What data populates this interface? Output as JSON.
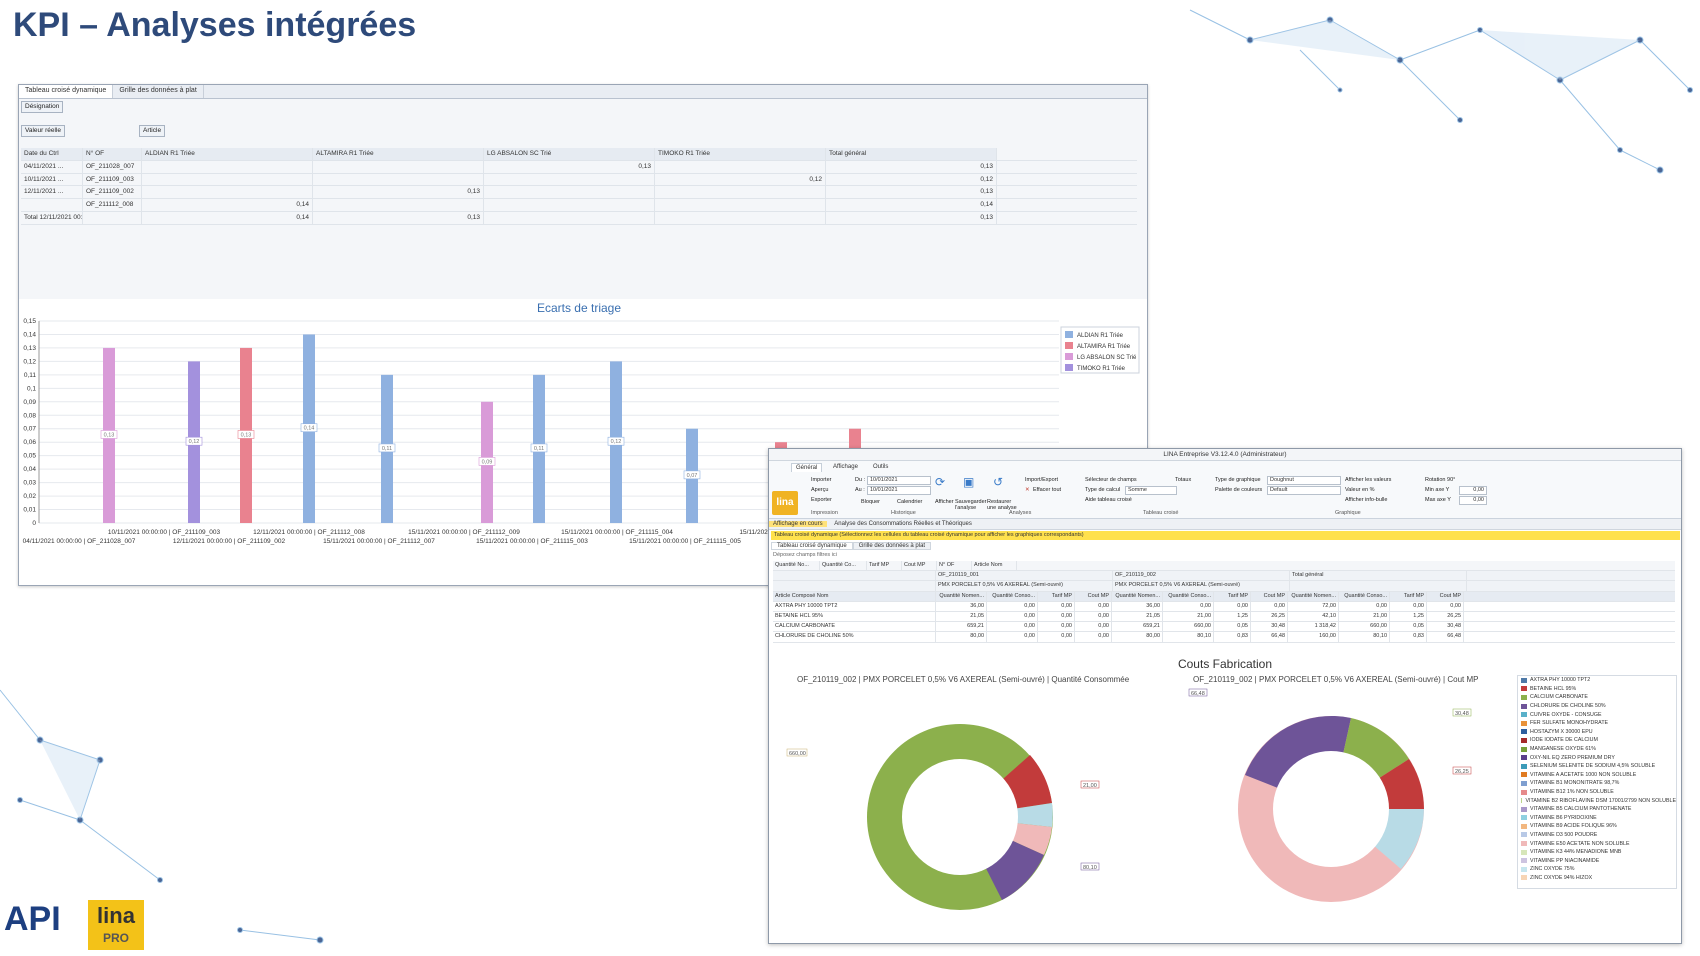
{
  "slide": {
    "title": "KPI – Analyses intégrées"
  },
  "window1": {
    "tabs": [
      "Tableau croisé dynamique",
      "Grille des données à plat"
    ],
    "filter_chip": "Désignation",
    "data_chip": "Valeur réelle",
    "column_chip": "Article",
    "row_chip_date": "Date du Ctrl",
    "row_chip_of": "N° OF",
    "columns": [
      "ALDIAN R1 Triée",
      "ALTAMIRA R1 Triée",
      "LG ABSALON SC Trié",
      "TIMOKO R1 Triée",
      "Total général"
    ],
    "rows": [
      {
        "date": "04/11/2021 ...",
        "of": "OF_211028_007",
        "vals": [
          "",
          "",
          "0,13",
          "",
          "0,13"
        ]
      },
      {
        "date": "10/11/2021 ...",
        "of": "OF_211109_003",
        "vals": [
          "",
          "",
          "",
          "0,12",
          "0,12"
        ]
      },
      {
        "date": "12/11/2021 ...",
        "of": "OF_211109_002",
        "vals": [
          "",
          "0,13",
          "",
          "",
          "0,13"
        ]
      },
      {
        "date": "",
        "of": "OF_211112_008",
        "vals": [
          "0,14",
          "",
          "",
          "",
          "0,14"
        ]
      },
      {
        "date": "Total 12/11/2021 00:00:00",
        "of": "",
        "vals": [
          "0,14",
          "0,13",
          "",
          "",
          "0,13"
        ]
      }
    ]
  },
  "chart_data": {
    "type": "bar",
    "title": "Ecarts de triage",
    "ylim": [
      0,
      0.15
    ],
    "yticks": [
      "0",
      "0,01",
      "0,02",
      "0,03",
      "0,04",
      "0,05",
      "0,06",
      "0,07",
      "0,08",
      "0,09",
      "0,1",
      "0,11",
      "0,12",
      "0,13",
      "0,14",
      "0,15"
    ],
    "legend_position": "top-right",
    "series": [
      {
        "name": "ALDIAN R1 Triée",
        "color": "#8fb1e0"
      },
      {
        "name": "ALTAMIRA R1 Triée",
        "color": "#e9828f"
      },
      {
        "name": "LG ABSALON SC Trié",
        "color": "#d99bd8"
      },
      {
        "name": "TIMOKO R1 Triée",
        "color": "#a391dd"
      }
    ],
    "bars": [
      {
        "series": 2,
        "value": 0.13,
        "label": "0,13"
      },
      {
        "series": 3,
        "value": 0.12,
        "label": "0,12"
      },
      {
        "series": 1,
        "value": 0.13,
        "label": "0,13"
      },
      {
        "series": 0,
        "value": 0.14,
        "label": "0,14"
      },
      {
        "series": 0,
        "value": 0.11,
        "label": "0,11"
      },
      {
        "series": 2,
        "value": 0.09,
        "label": "0,09"
      },
      {
        "series": 0,
        "value": 0.11,
        "label": "0,11"
      },
      {
        "series": 0,
        "value": 0.12,
        "label": "0,12"
      },
      {
        "series": 0,
        "value": 0.07,
        "label": "0,07"
      },
      {
        "series": 1,
        "value": 0.06,
        "label": "0,06"
      },
      {
        "series": 1,
        "value": 0.07,
        "label": ""
      }
    ],
    "xlabels_row1": [
      "10/11/2021 00:00:00 | OF_211109_003",
      "12/11/2021 00:00:00 | OF_211112_008",
      "15/11/2021 00:00:00 | OF_211112_009",
      "15/11/2021 00:00:00 | OF_211115_004",
      "15/11/2021 ..."
    ],
    "xlabels_row2": [
      "04/11/2021 00:00:00 | OF_211028_007",
      "12/11/2021 00:00:00 | OF_211109_002",
      "15/11/2021 00:00:00 | OF_211112_007",
      "15/11/2021 00:00:00 | OF_211115_003",
      "15/11/2021 00:00:00 | OF_211115_005"
    ]
  },
  "window2": {
    "title": "LINA Entreprise V3.12.4.0 (Administrateur)",
    "ribbon_tabs": [
      "Général",
      "Affichage",
      "Outils"
    ],
    "logo_text": "lina",
    "ribbon": {
      "importer": "Importer",
      "apercu": "Aperçu",
      "exporter": "Exporter",
      "impression": "Impression",
      "du_label": "Du :",
      "du_value": "10/01/2021",
      "au_label": "Au :",
      "au_value": "10/01/2021",
      "bloquer": "Bloquer",
      "calendrier": "Calendrier",
      "historique": "Historique",
      "afficher": "Afficher",
      "sauvegarder": "Sauvegarder l'analyse",
      "restaurer": "Restaurer une analyse",
      "import_export": "Import/Export",
      "effacer_tout": "Effacer tout",
      "analyses": "Analyses",
      "selecteur": "Sélecteur de champs",
      "totaux": "Totaux",
      "type_calcul": "Type de calcul",
      "type_calcul_value": "Somme",
      "aide": "Aide tableau croisé",
      "tableau_croise": "Tableau croisé",
      "type_graph": "Type de graphique",
      "type_graph_value": "Doughnut",
      "palette": "Palette de couleurs",
      "palette_value": "Default",
      "afficher_valeurs": "Afficher les valeurs",
      "valeur_pct": "Valeur en %",
      "afficher_info": "Afficher info-bulle",
      "rotation": "Rotation 90°",
      "min_y": "Min axe Y",
      "min_y_value": "0,00",
      "max_y": "Max axe Y",
      "max_y_value": "0,00",
      "graphique": "Graphique"
    },
    "crumb_left": "Affichage en cours",
    "crumb_right": "Analyse des Consommations Réelles et Théoriques",
    "info_bar": "Tableau croisé dynamique (Sélectionnez les cellules du tableau croisé dynamique pour afficher les graphiques correspondants)",
    "sub_tabs": [
      "Tableau croisé dynamique",
      "Grille des données à plat"
    ],
    "filter_zone": "Déposez champs filtres ici",
    "chips": [
      "Quantité No...",
      "Quantité Co...",
      "Tarif MP",
      "Cout MP",
      "N° OF",
      "Article Nom"
    ],
    "of1": "OF_210119_001",
    "of2": "OF_210119_002",
    "prod1": "PMX PORCELET 0,5% V6 AXEREAL (Semi-ouvré)",
    "prod2": "PMX PORCELET 0,5% V6 AXEREAL (Semi-ouvré)",
    "total_general": "Total général",
    "row_header": "Article Composé Nom",
    "sub_headers": [
      "Quantité Nomen...",
      "Quantité Conso...",
      "Tarif MP",
      "Cout MP"
    ],
    "rows": [
      {
        "name": "AXTRA PHY 10000 TPT2",
        "v": [
          "36,00",
          "0,00",
          "0,00",
          "0,00",
          "36,00",
          "0,00",
          "0,00",
          "0,00",
          "72,00",
          "0,00",
          "0,00",
          "0,00"
        ]
      },
      {
        "name": "BETAINE HCL 95%",
        "v": [
          "21,05",
          "0,00",
          "0,00",
          "0,00",
          "21,05",
          "21,00",
          "1,25",
          "26,25",
          "42,10",
          "21,00",
          "1,25",
          "26,25"
        ]
      },
      {
        "name": "CALCIUM CARBONATE",
        "v": [
          "659,21",
          "0,00",
          "0,00",
          "0,00",
          "659,21",
          "660,00",
          "0,05",
          "30,48",
          "1 318,42",
          "660,00",
          "0,05",
          "30,48"
        ]
      },
      {
        "name": "CHLORURE DE CHOLINE 50%",
        "v": [
          "80,00",
          "0,00",
          "0,00",
          "0,00",
          "80,00",
          "80,10",
          "0,83",
          "66,48",
          "160,00",
          "80,10",
          "0,83",
          "66,48"
        ]
      }
    ],
    "couts_title": "Couts Fabrication",
    "donut1_title": "OF_210119_002 | PMX PORCELET 0,5% V6 AXEREAL (Semi-ouvré) | Quantité Consommée",
    "donut2_title": "OF_210119_002 | PMX PORCELET 0,5% V6 AXEREAL (Semi-ouvré) | Cout MP",
    "donut1_callouts": [
      "660,00",
      "21,00",
      "80,10"
    ],
    "donut2_callouts": [
      "66,48",
      "26,25",
      "30,48"
    ],
    "legend": [
      {
        "name": "AXTRA PHY 10000 TPT2",
        "color": "#4e79a7"
      },
      {
        "name": "BETAINE HCL 95%",
        "color": "#c23b3b"
      },
      {
        "name": "CALCIUM CARBONATE",
        "color": "#8cb04c"
      },
      {
        "name": "CHLORURE DE CHOLINE 50%",
        "color": "#6e5498"
      },
      {
        "name": "CUIVRE OXYDE - CONSUGE",
        "color": "#59b0c9"
      },
      {
        "name": "FER SULFATE MONOHYDRATE",
        "color": "#e8923a"
      },
      {
        "name": "HOSTAZYM X 30000 EPU",
        "color": "#2f5f9e"
      },
      {
        "name": "IODE IODATE DE CALCIUM",
        "color": "#a52a2a"
      },
      {
        "name": "MANGANESE OXYDE 61%",
        "color": "#77a03a"
      },
      {
        "name": "OXY-NIL EQ ZERO PREMIUM DRY",
        "color": "#5b3f8a"
      },
      {
        "name": "SELENIUM SELENITE DE SODIUM 4,5% SOLUBLE",
        "color": "#3c9bb8"
      },
      {
        "name": "VITAMINE A ACETATE 1000 NON SOLUBLE",
        "color": "#e07b22"
      },
      {
        "name": "VITAMINE B1 MONONITRATE 98,7%",
        "color": "#7f9fd0"
      },
      {
        "name": "VITAMINE B12 1% NON SOLUBLE",
        "color": "#e68b8b"
      },
      {
        "name": "VITAMINE B2 RIBOFLAVINE DSM 17001/2799 NON SOLUBLE",
        "color": "#bcd68b"
      },
      {
        "name": "VITAMINE B5 CALCIUM PANTOTHENATE",
        "color": "#a999c9"
      },
      {
        "name": "VITAMINE B6 PYRIDOXINE",
        "color": "#8fd0e0"
      },
      {
        "name": "VITAMINE B9 ACIDE FOLIQUE 96%",
        "color": "#f2b780"
      },
      {
        "name": "VITAMINE D3 500 POUDRE",
        "color": "#b8c9e6"
      },
      {
        "name": "VITAMINE E50 ACETATE NON SOLUBLE",
        "color": "#f0b9b9"
      },
      {
        "name": "VITAMINE K3 44% MENADIONE MNB",
        "color": "#d7e6b9"
      },
      {
        "name": "VITAMINE PP NIACINAMIDE",
        "color": "#cdc4e0"
      },
      {
        "name": "ZINC OXYDE 75%",
        "color": "#c6e6ee"
      },
      {
        "name": "ZINC OXYDE 94% HIZOX",
        "color": "#f7d5b5"
      }
    ]
  },
  "branding": {
    "api": "API",
    "lina": "lina",
    "pro": "PRO"
  }
}
